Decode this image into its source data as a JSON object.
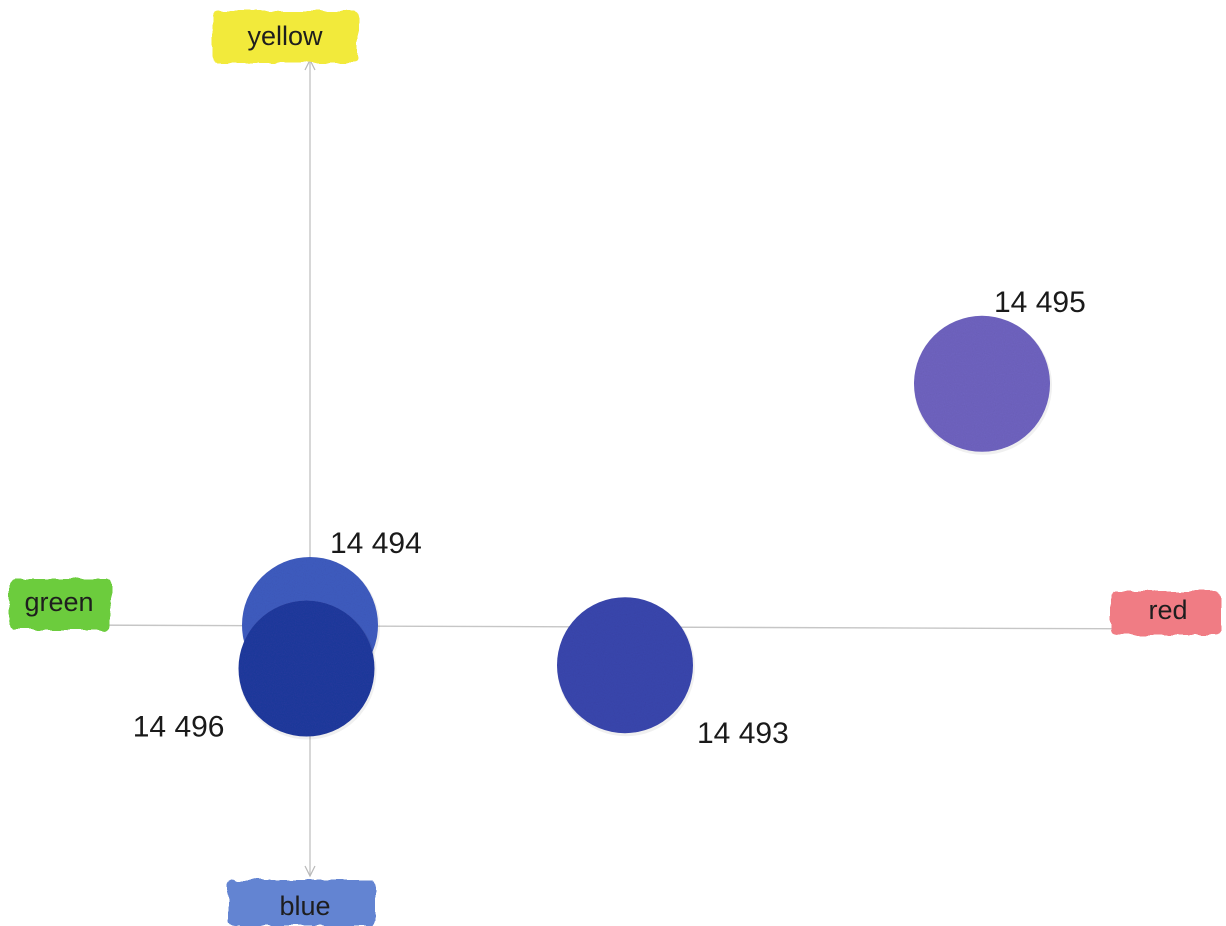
{
  "chart_data": {
    "type": "scatter",
    "title": "",
    "axes": {
      "x_positive_label": "red",
      "x_negative_label": "green",
      "y_positive_label": "yellow",
      "y_negative_label": "blue"
    },
    "xlim": [
      -4,
      13
    ],
    "ylim": [
      -4,
      9.3
    ],
    "grid": false,
    "points": [
      {
        "label": "14 493",
        "x": 4.5,
        "y": -0.6,
        "color": "#3a46ae"
      },
      {
        "label": "14 494",
        "x": 0.0,
        "y": 0.0,
        "color": "#3f5cc0"
      },
      {
        "label": "14 495",
        "x": 9.6,
        "y": 3.6,
        "color": "#6f63c0"
      },
      {
        "label": "14 496",
        "x": -0.05,
        "y": -0.65,
        "color": "#203a9e"
      }
    ],
    "axis_label_colors": {
      "yellow": "#f2ea3a",
      "green": "#6ccc3e",
      "red": "#f07b84",
      "blue": "#6484d2"
    }
  }
}
